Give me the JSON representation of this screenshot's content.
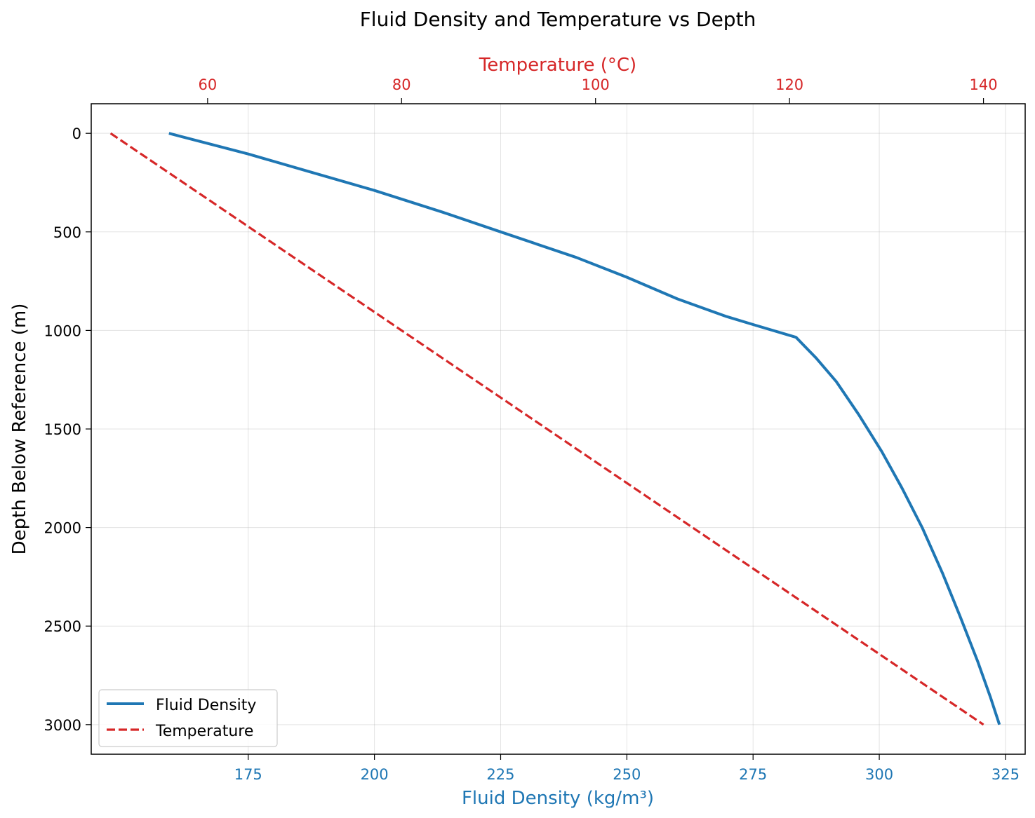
{
  "chart_data": {
    "type": "line",
    "title": "Fluid Density and Temperature vs Depth",
    "ylabel": "Depth Below Reference (m)",
    "ylim": [
      3150,
      -150
    ],
    "y_inverted": true,
    "yticks": [
      0,
      500,
      1000,
      1500,
      2000,
      2500,
      3000
    ],
    "bottom_axis": {
      "label": "Fluid Density (kg/m³)",
      "color": "#1f77b4",
      "lim": [
        143.9,
        328.9
      ],
      "ticks": [
        175,
        200,
        225,
        250,
        275,
        300,
        325
      ]
    },
    "top_axis": {
      "label": "Temperature (°C)",
      "color": "#d62728",
      "lim": [
        48.0,
        144.3
      ],
      "ticks": [
        60,
        80,
        100,
        120,
        140
      ]
    },
    "grid": true,
    "legend_position": "lower-left",
    "series": [
      {
        "name": "Fluid Density",
        "axis": "bottom",
        "color": "#1f77b4",
        "style": "solid",
        "x": [
          159.3,
          175.0,
          188.5,
          200.0,
          213.5,
          225.0,
          240.0,
          250.0,
          260.0,
          269.8,
          275.0,
          283.5,
          287.5,
          291.5,
          296.0,
          300.5,
          304.5,
          308.5,
          312.5,
          316.0,
          319.5,
          322.0,
          323.8
        ],
        "y": [
          0,
          105,
          205,
          290,
          400,
          500,
          630,
          730,
          840,
          930,
          970,
          1035,
          1140,
          1260,
          1430,
          1615,
          1800,
          2000,
          2230,
          2450,
          2680,
          2860,
          3000
        ]
      },
      {
        "name": "Temperature",
        "axis": "top",
        "color": "#d62728",
        "style": "dashed",
        "x": [
          50.0,
          140.0
        ],
        "y": [
          0,
          3000
        ]
      }
    ]
  }
}
